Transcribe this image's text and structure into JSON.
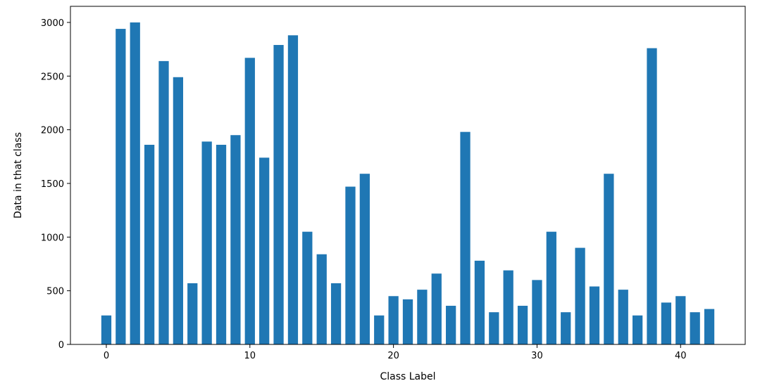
{
  "chart_data": {
    "type": "bar",
    "title": "",
    "xlabel": "Class Label",
    "ylabel": "Data in that class",
    "xlim": [
      -2.5,
      44.5
    ],
    "ylim": [
      0,
      3150
    ],
    "xticks": [
      0,
      10,
      20,
      30,
      40
    ],
    "yticks": [
      0,
      500,
      1000,
      1500,
      2000,
      2500,
      3000
    ],
    "grid": false,
    "bar_color": "#1f77b4",
    "x": [
      0,
      1,
      2,
      3,
      4,
      5,
      6,
      7,
      8,
      9,
      10,
      11,
      12,
      13,
      14,
      15,
      16,
      17,
      18,
      19,
      20,
      21,
      22,
      23,
      24,
      25,
      26,
      27,
      28,
      29,
      30,
      31,
      32,
      33,
      34,
      35,
      36,
      37,
      38,
      39,
      40,
      41,
      42
    ],
    "values": [
      270,
      2940,
      3000,
      1860,
      2640,
      2490,
      570,
      1890,
      1860,
      1950,
      2670,
      1740,
      2790,
      2880,
      1050,
      840,
      570,
      1470,
      1590,
      270,
      450,
      420,
      510,
      660,
      360,
      1980,
      780,
      300,
      690,
      360,
      600,
      1050,
      300,
      900,
      540,
      1590,
      510,
      270,
      2760,
      390,
      450,
      300,
      330
    ]
  }
}
